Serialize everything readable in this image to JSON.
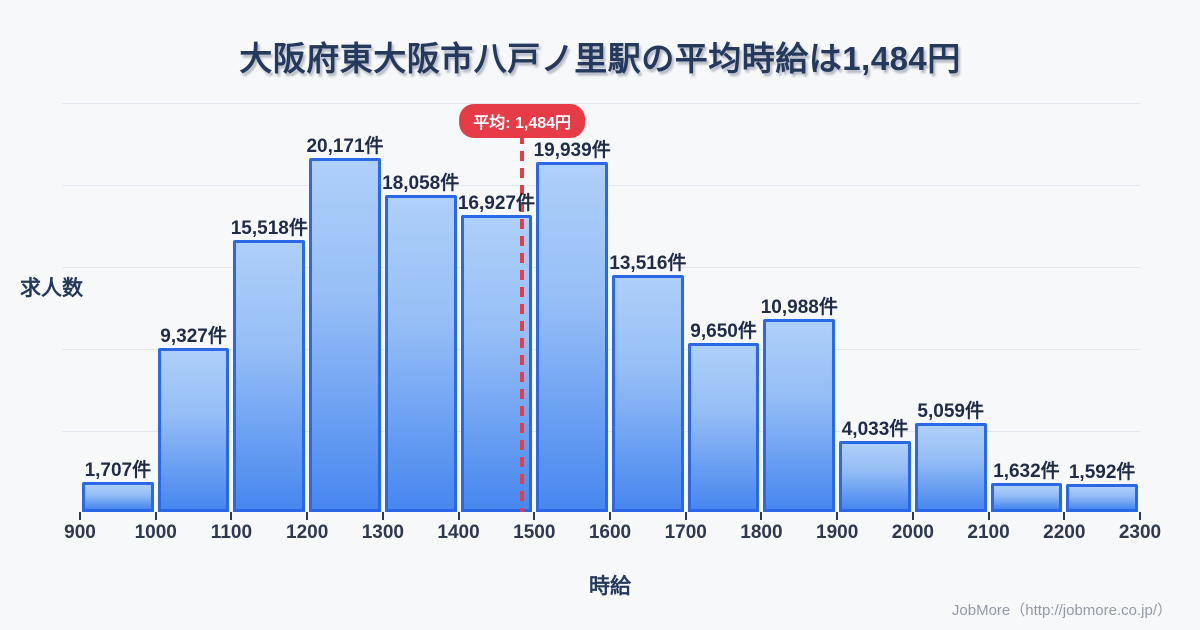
{
  "title": "大阪府東大阪市八戸ノ里駅の平均時給は1,484円",
  "y_axis_label": "求人数",
  "x_axis_label": "時給",
  "credit": "JobMore（http://jobmore.co.jp/）",
  "colors": {
    "background": "#f7f8fa",
    "title_text": "#24395c",
    "bar_fill_top": "#aed0f9",
    "bar_fill_bottom": "#4787ef",
    "bar_border": "#2b68e7",
    "grid_line": "#e3e8f0",
    "average_red": "#e63c47",
    "value_label_text": "#1f2c47",
    "credit_text": "#939aa6"
  },
  "chart_data": {
    "type": "bar",
    "title": "大阪府東大阪市八戸ノ里駅の平均時給は1,484円",
    "xlabel": "時給",
    "ylabel": "求人数",
    "bin_edges": [
      900,
      1000,
      1100,
      1200,
      1300,
      1400,
      1500,
      1600,
      1700,
      1800,
      1900,
      2000,
      2100,
      2200,
      2300
    ],
    "x_tick_labels": [
      "900",
      "1000",
      "1100",
      "1200",
      "1300",
      "1400",
      "1500",
      "1600",
      "1700",
      "1800",
      "1900",
      "2000",
      "2100",
      "2200",
      "2300"
    ],
    "values": [
      1707,
      9327,
      15518,
      20171,
      18058,
      16927,
      19939,
      13516,
      9650,
      10988,
      4033,
      5059,
      1632,
      1592
    ],
    "value_labels": [
      "1,707件",
      "9,327件",
      "15,518件",
      "20,171件",
      "18,058件",
      "16,927件",
      "19,939件",
      "13,516件",
      "9,650件",
      "10,988件",
      "4,033件",
      "5,059件",
      "1,632件",
      "1,592件"
    ],
    "unit": "件",
    "average": 1484,
    "average_label": "平均: 1,484円",
    "xlim": [
      900,
      2300
    ],
    "grid": true,
    "legend": false
  }
}
